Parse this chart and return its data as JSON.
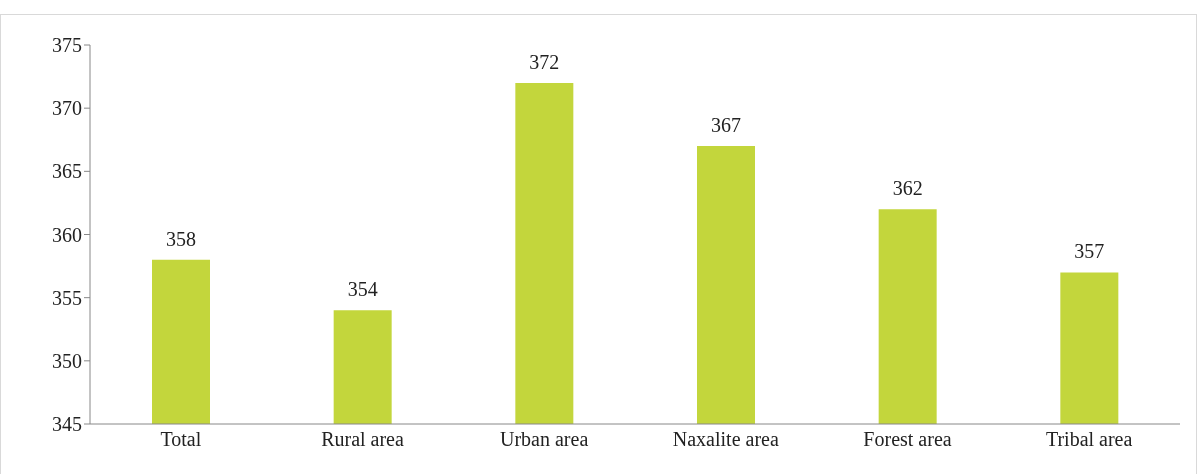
{
  "chart_data": {
    "type": "bar",
    "categories": [
      "Total",
      "Rural area",
      "Urban area",
      "Naxalite area",
      "Forest area",
      "Tribal area"
    ],
    "values": [
      358,
      354,
      372,
      367,
      362,
      357
    ],
    "color": "#c3d63c",
    "ylim": [
      345,
      375
    ],
    "yticks": [
      345,
      350,
      355,
      360,
      365,
      370,
      375
    ],
    "grid": false,
    "legend": false,
    "data_labels": true
  }
}
